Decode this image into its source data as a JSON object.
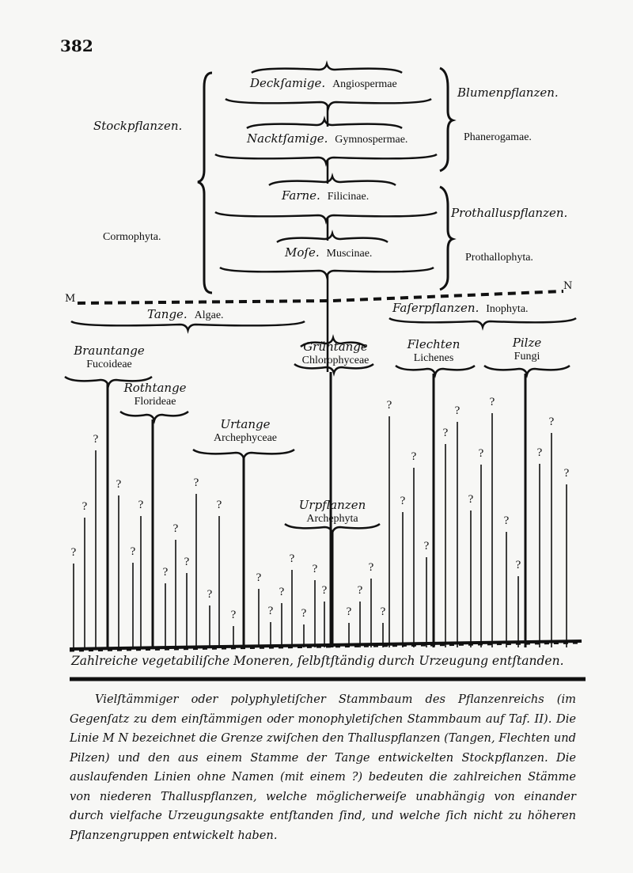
{
  "page_number": "382",
  "upper": {
    "left_labels": {
      "german": "Stockpflanzen.",
      "latin": "Cormophyta."
    },
    "groups": [
      {
        "german": "Deckſamige.",
        "latin": "Angiospermae"
      },
      {
        "german": "Nacktſamige.",
        "latin": "Gymnospermae."
      },
      {
        "german": "Farne.",
        "latin": "Filicinae."
      },
      {
        "german": "Moſe.",
        "latin": "Muscinae."
      }
    ],
    "right_labels": [
      {
        "german": "Blumenpflanzen.",
        "latin": "Phanerogamae."
      },
      {
        "german": "Prothalluspflanzen.",
        "latin": "Prothallophyta."
      }
    ]
  },
  "boundary_line": {
    "left": "M",
    "right": "N"
  },
  "lower": {
    "algae": {
      "german": "Tange.",
      "latin": "Algae."
    },
    "inophyta": {
      "german": "Faſerpflanzen.",
      "latin": "Inophyta."
    },
    "branches": [
      {
        "german": "Brauntange",
        "latin": "Fucoideae"
      },
      {
        "german": "Rothtange",
        "latin": "Florideae"
      },
      {
        "german": "Urtange",
        "latin": "Archephyceae"
      },
      {
        "german": "Grüntange",
        "latin": "Chlorophyceae"
      },
      {
        "german": "Urpflanzen",
        "latin": "Archephyta"
      },
      {
        "german": "Flechten",
        "latin": "Lichenes"
      },
      {
        "german": "Pilze",
        "latin": "Fungi"
      }
    ],
    "unnamed_marker": "?",
    "base_label": "Zahlreiche vegetabiliſche Moneren, ſelbſtſtändig durch Urzeugung entſtanden."
  },
  "caption": "Vielſtämmiger oder polyphyletiſcher Stammbaum des Pflanzenreichs (im Gegenſatz zu dem einſtämmigen oder monophyletiſchen Stammbaum auf Taf. II). Die Linie M N bezeichnet die Grenze zwiſchen den Thalluspflanzen (Tangen, Flechten und Pilzen) und den aus einem Stamme der Tange entwickelten Stockpflanzen. Die auslaufenden Linien ohne Namen (mit einem ?) bedeuten die zahlreichen Stämme von niederen Thalluspflanzen, welche möglicherweiſe unabhängig von einander durch vielfache Urzeugungsakte entſtanden ſind, und welche ſich nicht zu höheren Pflanzengruppen entwickelt haben."
}
